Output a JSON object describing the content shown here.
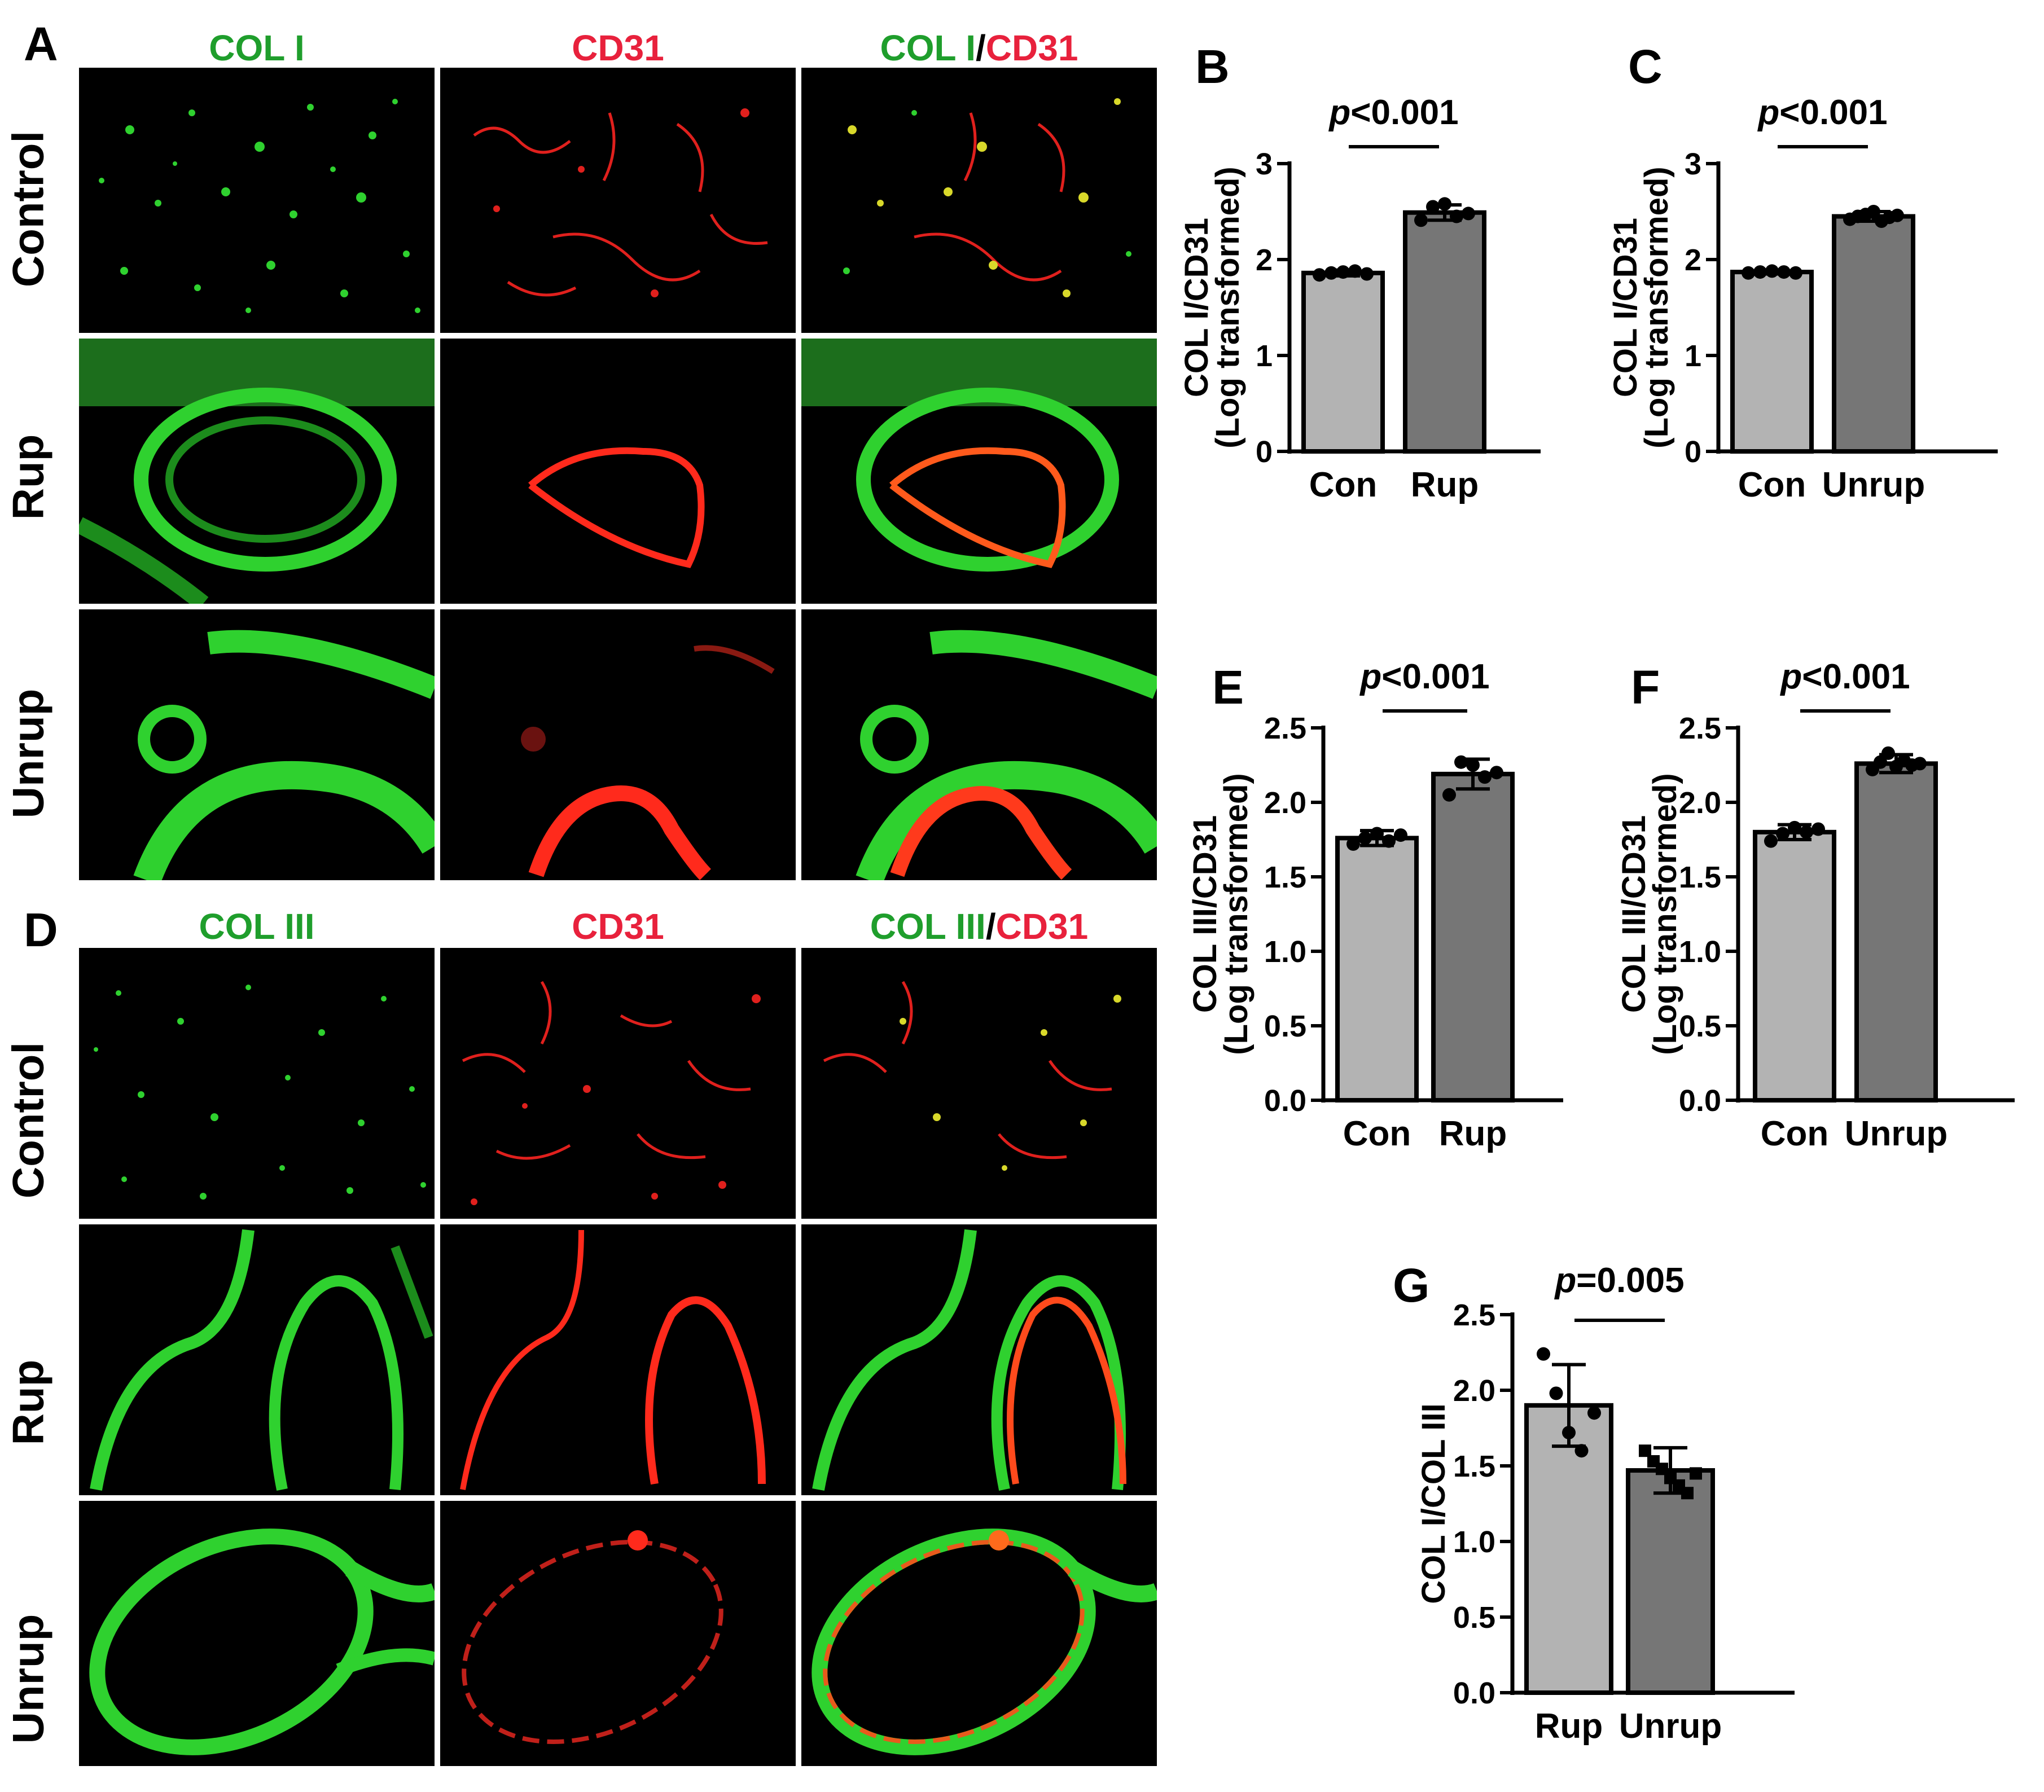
{
  "panels": {
    "A": "A",
    "B": "B",
    "C": "C",
    "D": "D",
    "E": "E",
    "F": "F",
    "G": "G"
  },
  "panel_A": {
    "col_headers": [
      {
        "green": "COL I",
        "red": ""
      },
      {
        "green": "",
        "red": "CD31"
      },
      {
        "green": "COL I",
        "sep": "/",
        "red": "CD31"
      }
    ],
    "rows": [
      "Control",
      "Rup",
      "Unrup"
    ]
  },
  "panel_D": {
    "col_headers": [
      {
        "green": "COL III",
        "red": ""
      },
      {
        "green": "",
        "red": "CD31"
      },
      {
        "green": "COL III",
        "sep": "/",
        "red": "CD31"
      }
    ],
    "rows": [
      "Control",
      "Rup",
      "Unrup"
    ]
  },
  "colors": {
    "green": "#1f9e2c",
    "red": "#e8213c",
    "bar_light": "#b3b3b3",
    "bar_dark": "#767676"
  },
  "chart_data": [
    {
      "panel": "B",
      "type": "bar",
      "categories": [
        "Con",
        "Rup"
      ],
      "values": [
        1.86,
        2.49
      ],
      "errors": [
        0.03,
        0.08
      ],
      "points": [
        [
          1.84,
          1.86,
          1.87,
          1.88,
          1.85
        ],
        [
          2.41,
          2.55,
          2.58,
          2.45,
          2.48
        ]
      ],
      "ylabel_line1": "COL I/CD31",
      "ylabel_line2": "(Log transformed)",
      "ylim": [
        0,
        3
      ],
      "yticks": [
        "0",
        "1",
        "2",
        "3"
      ],
      "annotation": {
        "italic": "p",
        "text": "<0.001"
      }
    },
    {
      "panel": "C",
      "type": "bar",
      "categories": [
        "Con",
        "Unrup"
      ],
      "values": [
        1.87,
        2.45
      ],
      "errors": [
        0.02,
        0.05
      ],
      "points": [
        [
          1.86,
          1.87,
          1.88,
          1.87,
          1.86
        ],
        [
          2.42,
          2.45,
          2.47,
          2.5,
          2.4,
          2.44,
          2.46
        ]
      ],
      "ylabel_line1": "COL I/CD31",
      "ylabel_line2": "(Log transformed)",
      "ylim": [
        0,
        3
      ],
      "yticks": [
        "0",
        "1",
        "2",
        "3"
      ],
      "annotation": {
        "italic": "p",
        "text": "<0.001"
      }
    },
    {
      "panel": "E",
      "type": "bar",
      "categories": [
        "Con",
        "Rup"
      ],
      "values": [
        1.76,
        2.19
      ],
      "errors": [
        0.05,
        0.1
      ],
      "points": [
        [
          1.72,
          1.76,
          1.79,
          1.74,
          1.78
        ],
        [
          2.05,
          2.27,
          2.25,
          2.17,
          2.2
        ]
      ],
      "ylabel_line1": "COL III/CD31",
      "ylabel_line2": "(Log transformed)",
      "ylim": [
        0,
        2.5
      ],
      "yticks": [
        "0.0",
        "0.5",
        "1.0",
        "1.5",
        "2.0",
        "2.5"
      ],
      "annotation": {
        "italic": "p",
        "text": "<0.001"
      }
    },
    {
      "panel": "F",
      "type": "bar",
      "categories": [
        "Con",
        "Unrup"
      ],
      "values": [
        1.8,
        2.26
      ],
      "errors": [
        0.05,
        0.06
      ],
      "points": [
        [
          1.74,
          1.79,
          1.83,
          1.8,
          1.82
        ],
        [
          2.22,
          2.27,
          2.33,
          2.24,
          2.28,
          2.25,
          2.26
        ]
      ],
      "ylabel_line1": "COL III/CD31",
      "ylabel_line2": "(Log transformed)",
      "ylim": [
        0,
        2.5
      ],
      "yticks": [
        "0.0",
        "0.5",
        "1.0",
        "1.5",
        "2.0",
        "2.5"
      ],
      "annotation": {
        "italic": "p",
        "text": "<0.001"
      }
    },
    {
      "panel": "G",
      "type": "bar",
      "categories": [
        "Rup",
        "Unrup"
      ],
      "values": [
        1.9,
        1.47
      ],
      "errors": [
        0.27,
        0.15
      ],
      "points": [
        [
          2.24,
          1.98,
          1.72,
          1.6,
          1.85
        ],
        [
          1.6,
          1.53,
          1.48,
          1.42,
          1.37,
          1.32,
          1.45
        ]
      ],
      "point_markers": [
        "circle",
        "square"
      ],
      "ylabel_line1": "COL I/COL III",
      "ylabel_line2": "",
      "ylim": [
        0,
        2.5
      ],
      "yticks": [
        "0.0",
        "0.5",
        "1.0",
        "1.5",
        "2.0",
        "2.5"
      ],
      "annotation": {
        "italic": "p",
        "text": "=0.005"
      }
    }
  ]
}
